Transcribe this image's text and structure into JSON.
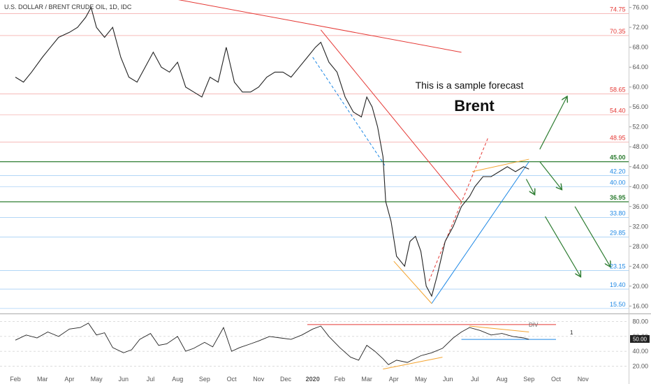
{
  "header": {
    "symbol_title": "U.S. DOLLAR / BRENT CRUDE OIL, 1D, IDC"
  },
  "annotations": {
    "forecast_note": "This is a sample forecast",
    "instrument": "Brent",
    "div_label": "DIV",
    "rsi_ref": "1"
  },
  "colors": {
    "red": "#e53935",
    "green": "#2e7d32",
    "blue": "#1e88e5",
    "orange": "#f4a430",
    "candle_up": "#222222"
  },
  "chart_data": [
    {
      "type": "candlestick",
      "title": "",
      "x_months": [
        "Feb",
        "Mar",
        "Apr",
        "May",
        "Jun",
        "Jul",
        "Aug",
        "Sep",
        "Oct",
        "Nov",
        "Dec",
        "2020",
        "Feb",
        "Mar",
        "Apr",
        "May",
        "Jun",
        "Jul",
        "Aug",
        "Sep",
        "Oct",
        "Nov"
      ],
      "y_ticks": [
        "76.00",
        "72.00",
        "68.00",
        "64.00",
        "60.00",
        "56.00",
        "52.00",
        "48.00",
        "44.00",
        "40.00",
        "36.00",
        "32.00",
        "28.00",
        "24.00",
        "20.00",
        "16.00"
      ],
      "ylim": [
        14.5,
        77.5
      ],
      "price_path": [
        [
          0,
          62
        ],
        [
          0.3,
          61
        ],
        [
          0.6,
          63
        ],
        [
          1,
          66
        ],
        [
          1.3,
          68
        ],
        [
          1.6,
          70
        ],
        [
          2,
          71
        ],
        [
          2.3,
          72
        ],
        [
          2.6,
          74
        ],
        [
          2.8,
          76
        ],
        [
          3,
          72
        ],
        [
          3.3,
          70
        ],
        [
          3.6,
          72
        ],
        [
          3.9,
          66
        ],
        [
          4.2,
          62
        ],
        [
          4.5,
          61
        ],
        [
          4.8,
          64
        ],
        [
          5.1,
          67
        ],
        [
          5.4,
          64
        ],
        [
          5.7,
          63
        ],
        [
          6,
          65
        ],
        [
          6.3,
          60
        ],
        [
          6.6,
          59
        ],
        [
          6.9,
          58
        ],
        [
          7.2,
          62
        ],
        [
          7.5,
          61
        ],
        [
          7.8,
          68
        ],
        [
          8.1,
          61
        ],
        [
          8.4,
          59
        ],
        [
          8.7,
          59
        ],
        [
          9,
          60
        ],
        [
          9.3,
          62
        ],
        [
          9.6,
          63
        ],
        [
          9.9,
          63
        ],
        [
          10.2,
          62
        ],
        [
          10.5,
          64
        ],
        [
          10.8,
          66
        ],
        [
          11.1,
          68
        ],
        [
          11.3,
          69
        ],
        [
          11.6,
          65
        ],
        [
          11.9,
          63
        ],
        [
          12.2,
          58
        ],
        [
          12.5,
          55
        ],
        [
          12.8,
          54
        ],
        [
          13,
          58
        ],
        [
          13.2,
          56
        ],
        [
          13.4,
          52
        ],
        [
          13.6,
          46
        ],
        [
          13.7,
          37
        ],
        [
          13.9,
          33
        ],
        [
          14.1,
          26
        ],
        [
          14.4,
          24
        ],
        [
          14.6,
          29
        ],
        [
          14.8,
          30
        ],
        [
          15,
          27
        ],
        [
          15.2,
          20
        ],
        [
          15.4,
          18
        ],
        [
          15.6,
          22
        ],
        [
          15.9,
          29
        ],
        [
          16.2,
          32
        ],
        [
          16.5,
          36
        ],
        [
          16.8,
          38
        ],
        [
          17,
          40
        ],
        [
          17.3,
          42
        ],
        [
          17.6,
          42
        ],
        [
          17.9,
          43
        ],
        [
          18.2,
          44
        ],
        [
          18.5,
          43
        ],
        [
          18.8,
          44
        ],
        [
          19,
          43.5
        ]
      ],
      "price_levels": [
        {
          "value": 74.75,
          "label": "74.75",
          "color": "#e53935"
        },
        {
          "value": 70.35,
          "label": "70.35",
          "color": "#e53935"
        },
        {
          "value": 58.65,
          "label": "58.65",
          "color": "#e53935"
        },
        {
          "value": 54.4,
          "label": "54.40",
          "color": "#e53935"
        },
        {
          "value": 48.95,
          "label": "48.95",
          "color": "#e53935"
        },
        {
          "value": 45.0,
          "label": "45.00",
          "color": "#2e7d32",
          "bold": true
        },
        {
          "value": 42.2,
          "label": "42.20",
          "color": "#1e88e5"
        },
        {
          "value": 40.0,
          "label": "40.00",
          "color": "#1e88e5"
        },
        {
          "value": 36.95,
          "label": "36.95",
          "color": "#2e7d32",
          "bold": true
        },
        {
          "value": 33.8,
          "label": "33.80",
          "color": "#1e88e5"
        },
        {
          "value": 29.85,
          "label": "29.85",
          "color": "#1e88e5"
        },
        {
          "value": 23.15,
          "label": "23.15",
          "color": "#1e88e5"
        },
        {
          "value": 19.4,
          "label": "19.40",
          "color": "#1e88e5"
        },
        {
          "value": 15.5,
          "label": "15.50",
          "color": "#1e88e5"
        }
      ],
      "trendlines": [
        {
          "name": "long downtrend",
          "color": "#e53935",
          "from": [
            5.1,
            78.5
          ],
          "to": [
            16.5,
            67
          ]
        },
        {
          "name": "steep downtrend",
          "color": "#e53935",
          "from": [
            11.3,
            71.5
          ],
          "to": [
            16.5,
            37
          ]
        },
        {
          "name": "dashed channel",
          "color": "#1e88e5",
          "dashed": true,
          "from": [
            11.0,
            66
          ],
          "to": [
            13.7,
            44
          ]
        },
        {
          "name": "support uptrend",
          "color": "#1e88e5",
          "from": [
            15.4,
            16.5
          ],
          "to": [
            19.0,
            45
          ]
        },
        {
          "name": "dashed up",
          "color": "#e53935",
          "dashed": true,
          "from": [
            15.3,
            21
          ],
          "to": [
            17.5,
            50
          ]
        },
        {
          "name": "wedge top",
          "color": "#f4a430",
          "from": [
            16.9,
            43
          ],
          "to": [
            19.0,
            45.5
          ]
        },
        {
          "name": "triangle low",
          "color": "#f4a430",
          "from": [
            14.0,
            25
          ],
          "to": [
            15.4,
            16.5
          ]
        }
      ],
      "forecast_arrows": [
        {
          "from": [
            19.4,
            47.5
          ],
          "to": [
            20.4,
            58
          ]
        },
        {
          "from": [
            19.4,
            45.0
          ],
          "to": [
            20.2,
            39.5
          ]
        },
        {
          "from": [
            18.9,
            41.5
          ],
          "to": [
            19.2,
            38.5
          ]
        },
        {
          "from": [
            19.6,
            34.0
          ],
          "to": [
            20.9,
            22.0
          ]
        },
        {
          "from": [
            20.7,
            36.0
          ],
          "to": [
            22.0,
            24.0
          ]
        }
      ]
    },
    {
      "type": "line",
      "title": "",
      "y_ticks": [
        "80.00",
        "60.00",
        "40.00",
        "20.00"
      ],
      "ylim": [
        10,
        90
      ],
      "marker_value": "50.00",
      "rsi_path": [
        [
          0,
          55
        ],
        [
          0.4,
          62
        ],
        [
          0.8,
          58
        ],
        [
          1.2,
          66
        ],
        [
          1.6,
          60
        ],
        [
          2,
          70
        ],
        [
          2.4,
          72
        ],
        [
          2.7,
          78
        ],
        [
          3,
          62
        ],
        [
          3.3,
          65
        ],
        [
          3.6,
          45
        ],
        [
          4,
          38
        ],
        [
          4.3,
          42
        ],
        [
          4.6,
          56
        ],
        [
          5,
          64
        ],
        [
          5.3,
          48
        ],
        [
          5.6,
          50
        ],
        [
          6,
          60
        ],
        [
          6.3,
          40
        ],
        [
          6.6,
          44
        ],
        [
          7,
          52
        ],
        [
          7.3,
          46
        ],
        [
          7.7,
          72
        ],
        [
          8,
          40
        ],
        [
          8.3,
          45
        ],
        [
          8.7,
          50
        ],
        [
          9,
          54
        ],
        [
          9.4,
          60
        ],
        [
          9.8,
          58
        ],
        [
          10.2,
          56
        ],
        [
          10.6,
          62
        ],
        [
          11,
          70
        ],
        [
          11.3,
          74
        ],
        [
          11.6,
          60
        ],
        [
          12,
          45
        ],
        [
          12.4,
          32
        ],
        [
          12.7,
          28
        ],
        [
          13,
          48
        ],
        [
          13.3,
          40
        ],
        [
          13.6,
          30
        ],
        [
          13.8,
          22
        ],
        [
          14.1,
          28
        ],
        [
          14.5,
          25
        ],
        [
          15,
          34
        ],
        [
          15.4,
          38
        ],
        [
          15.8,
          44
        ],
        [
          16.2,
          58
        ],
        [
          16.5,
          66
        ],
        [
          16.8,
          72
        ],
        [
          17.2,
          68
        ],
        [
          17.6,
          62
        ],
        [
          18,
          64
        ],
        [
          18.4,
          60
        ],
        [
          18.8,
          58
        ],
        [
          19,
          56
        ]
      ],
      "lines": [
        {
          "name": "rsi high red",
          "color": "#e53935",
          "from": [
            10.8,
            76
          ],
          "to": [
            20.0,
            76
          ]
        },
        {
          "name": "rsi div orange",
          "color": "#f4a430",
          "from": [
            16.8,
            74
          ],
          "to": [
            19.0,
            66
          ]
        },
        {
          "name": "rsi low orange",
          "color": "#f4a430",
          "from": [
            13.6,
            16
          ],
          "to": [
            15.8,
            32
          ]
        },
        {
          "name": "rsi support blue",
          "color": "#1e88e5",
          "from": [
            16.5,
            56
          ],
          "to": [
            20.0,
            56
          ]
        }
      ]
    }
  ]
}
